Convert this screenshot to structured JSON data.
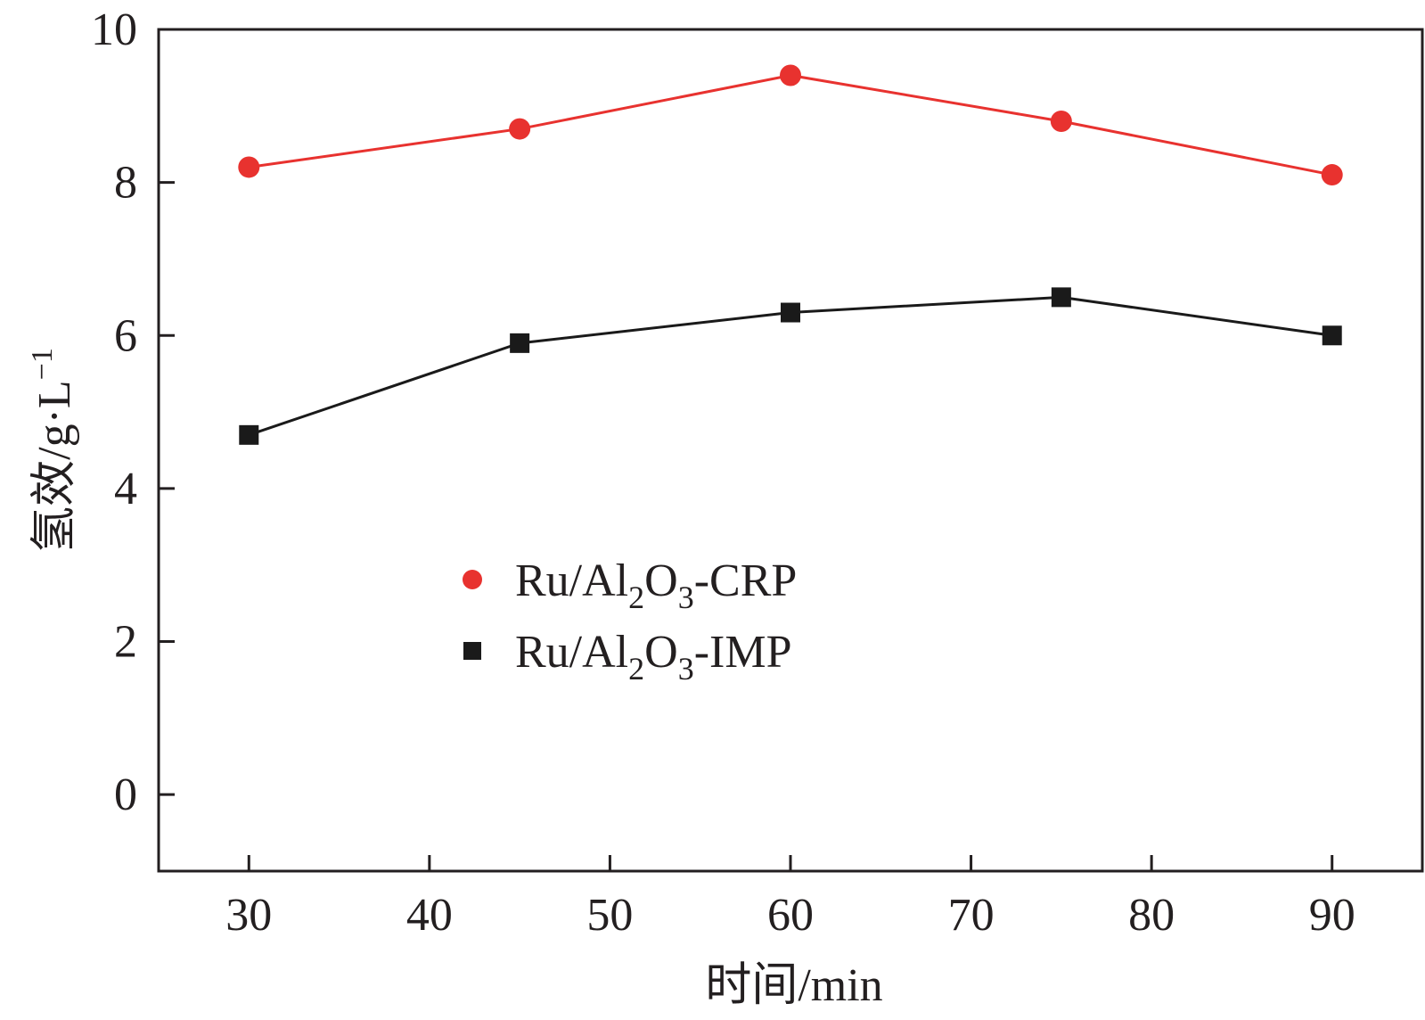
{
  "chart_data": {
    "type": "line",
    "title": "",
    "xlabel": "时间/min",
    "ylabel": "氢效/g·L",
    "ylabel_superscript": "−1",
    "xlim": [
      25,
      95
    ],
    "ylim": [
      -1,
      10
    ],
    "xticks": [
      30,
      40,
      50,
      60,
      70,
      80,
      90
    ],
    "yticks": [
      0,
      2,
      4,
      6,
      8,
      10
    ],
    "grid": false,
    "legend_position": "center-left",
    "series": [
      {
        "name": "Ru/Al2O3-CRP",
        "legend_parts": [
          "Ru/Al",
          "2",
          "O",
          "3",
          "-CRP"
        ],
        "marker": "circle",
        "color": "#e8322f",
        "x": [
          30,
          45,
          60,
          75,
          90
        ],
        "values": [
          8.2,
          8.7,
          9.4,
          8.8,
          8.1
        ]
      },
      {
        "name": "Ru/Al2O3-IMP",
        "legend_parts": [
          "Ru/Al",
          "2",
          "O",
          "3",
          "-IMP"
        ],
        "marker": "square",
        "color": "#1a1a1a",
        "x": [
          30,
          45,
          60,
          75,
          90
        ],
        "values": [
          4.7,
          5.9,
          6.3,
          6.5,
          6.0
        ]
      }
    ]
  }
}
